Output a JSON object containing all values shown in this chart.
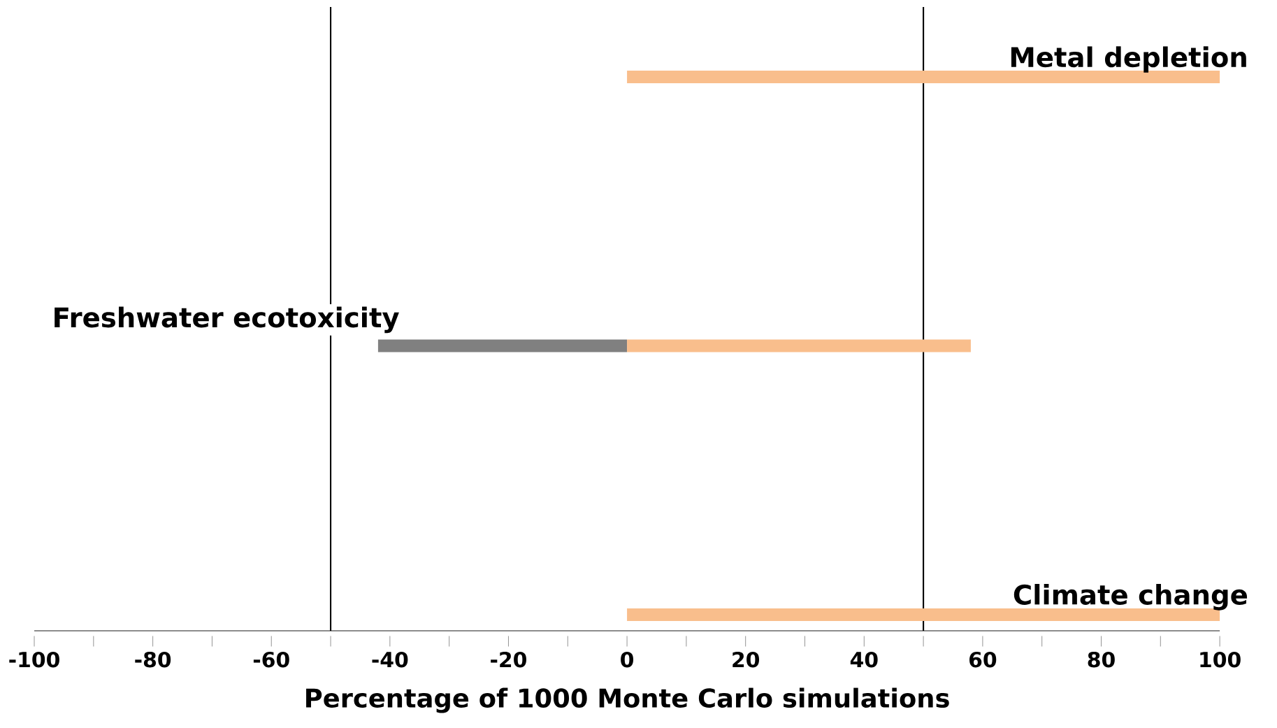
{
  "chart_data": {
    "type": "bar",
    "orientation": "horizontal",
    "xlabel": "Percentage of 1000 Monte Carlo simulations",
    "categories": [
      "Metal depletion",
      "Freshwater ecotoxicity",
      "Climate change"
    ],
    "series": [
      {
        "color": "#808080",
        "values": [
          null,
          -42,
          null
        ]
      },
      {
        "color": "#f9be8c",
        "values": [
          100,
          58,
          100
        ]
      }
    ],
    "xlim": [
      -100,
      100
    ],
    "xticks": [
      -100,
      {
        "value": -90,
        "label": null
      },
      -80,
      {
        "value": -70,
        "label": null
      },
      -60,
      {
        "value": -50,
        "label": null
      },
      -40,
      {
        "value": -30,
        "label": null
      },
      -20,
      {
        "value": -10,
        "label": null
      },
      0,
      {
        "value": 10,
        "label": null
      },
      20,
      {
        "value": 30,
        "label": null
      },
      40,
      {
        "value": 50,
        "label": null
      },
      60,
      {
        "value": 70,
        "label": null
      },
      80,
      {
        "value": 90,
        "label": null
      },
      100
    ],
    "ref_lines": [
      {
        "axis": "x",
        "value": -50,
        "color": "#000000"
      },
      {
        "axis": "x",
        "value": 50,
        "color": "#000000"
      }
    ],
    "grid": false
  }
}
